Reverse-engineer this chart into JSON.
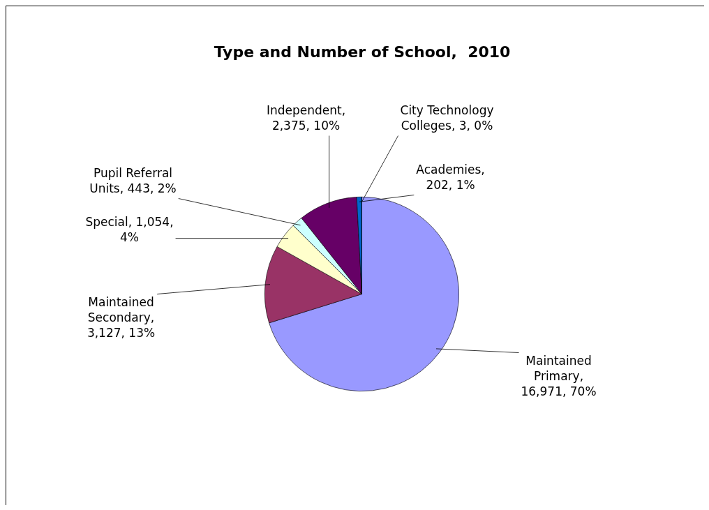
{
  "chart_data": {
    "type": "pie",
    "title": "Type and Number of School,  2010",
    "categories": [
      "Maintained Primary",
      "Maintained Secondary",
      "Special",
      "Pupil Referral Units",
      "Independent",
      "Academies",
      "City Technology Colleges"
    ],
    "values": [
      16971,
      3127,
      1054,
      443,
      2375,
      202,
      3
    ],
    "value_labels": [
      ", 16,971, 70%",
      ", 3,127, 13%",
      ", 1,054, 4%",
      ", 443, 2%",
      ", 2,375, 10%",
      ", 202, 1%",
      ", 3, 0%"
    ],
    "colors": [
      "#9999ff",
      "#993366",
      "#ffffcc",
      "#ccffff",
      "#660066",
      "#0066cc",
      "#ff8080"
    ],
    "legend": false
  }
}
